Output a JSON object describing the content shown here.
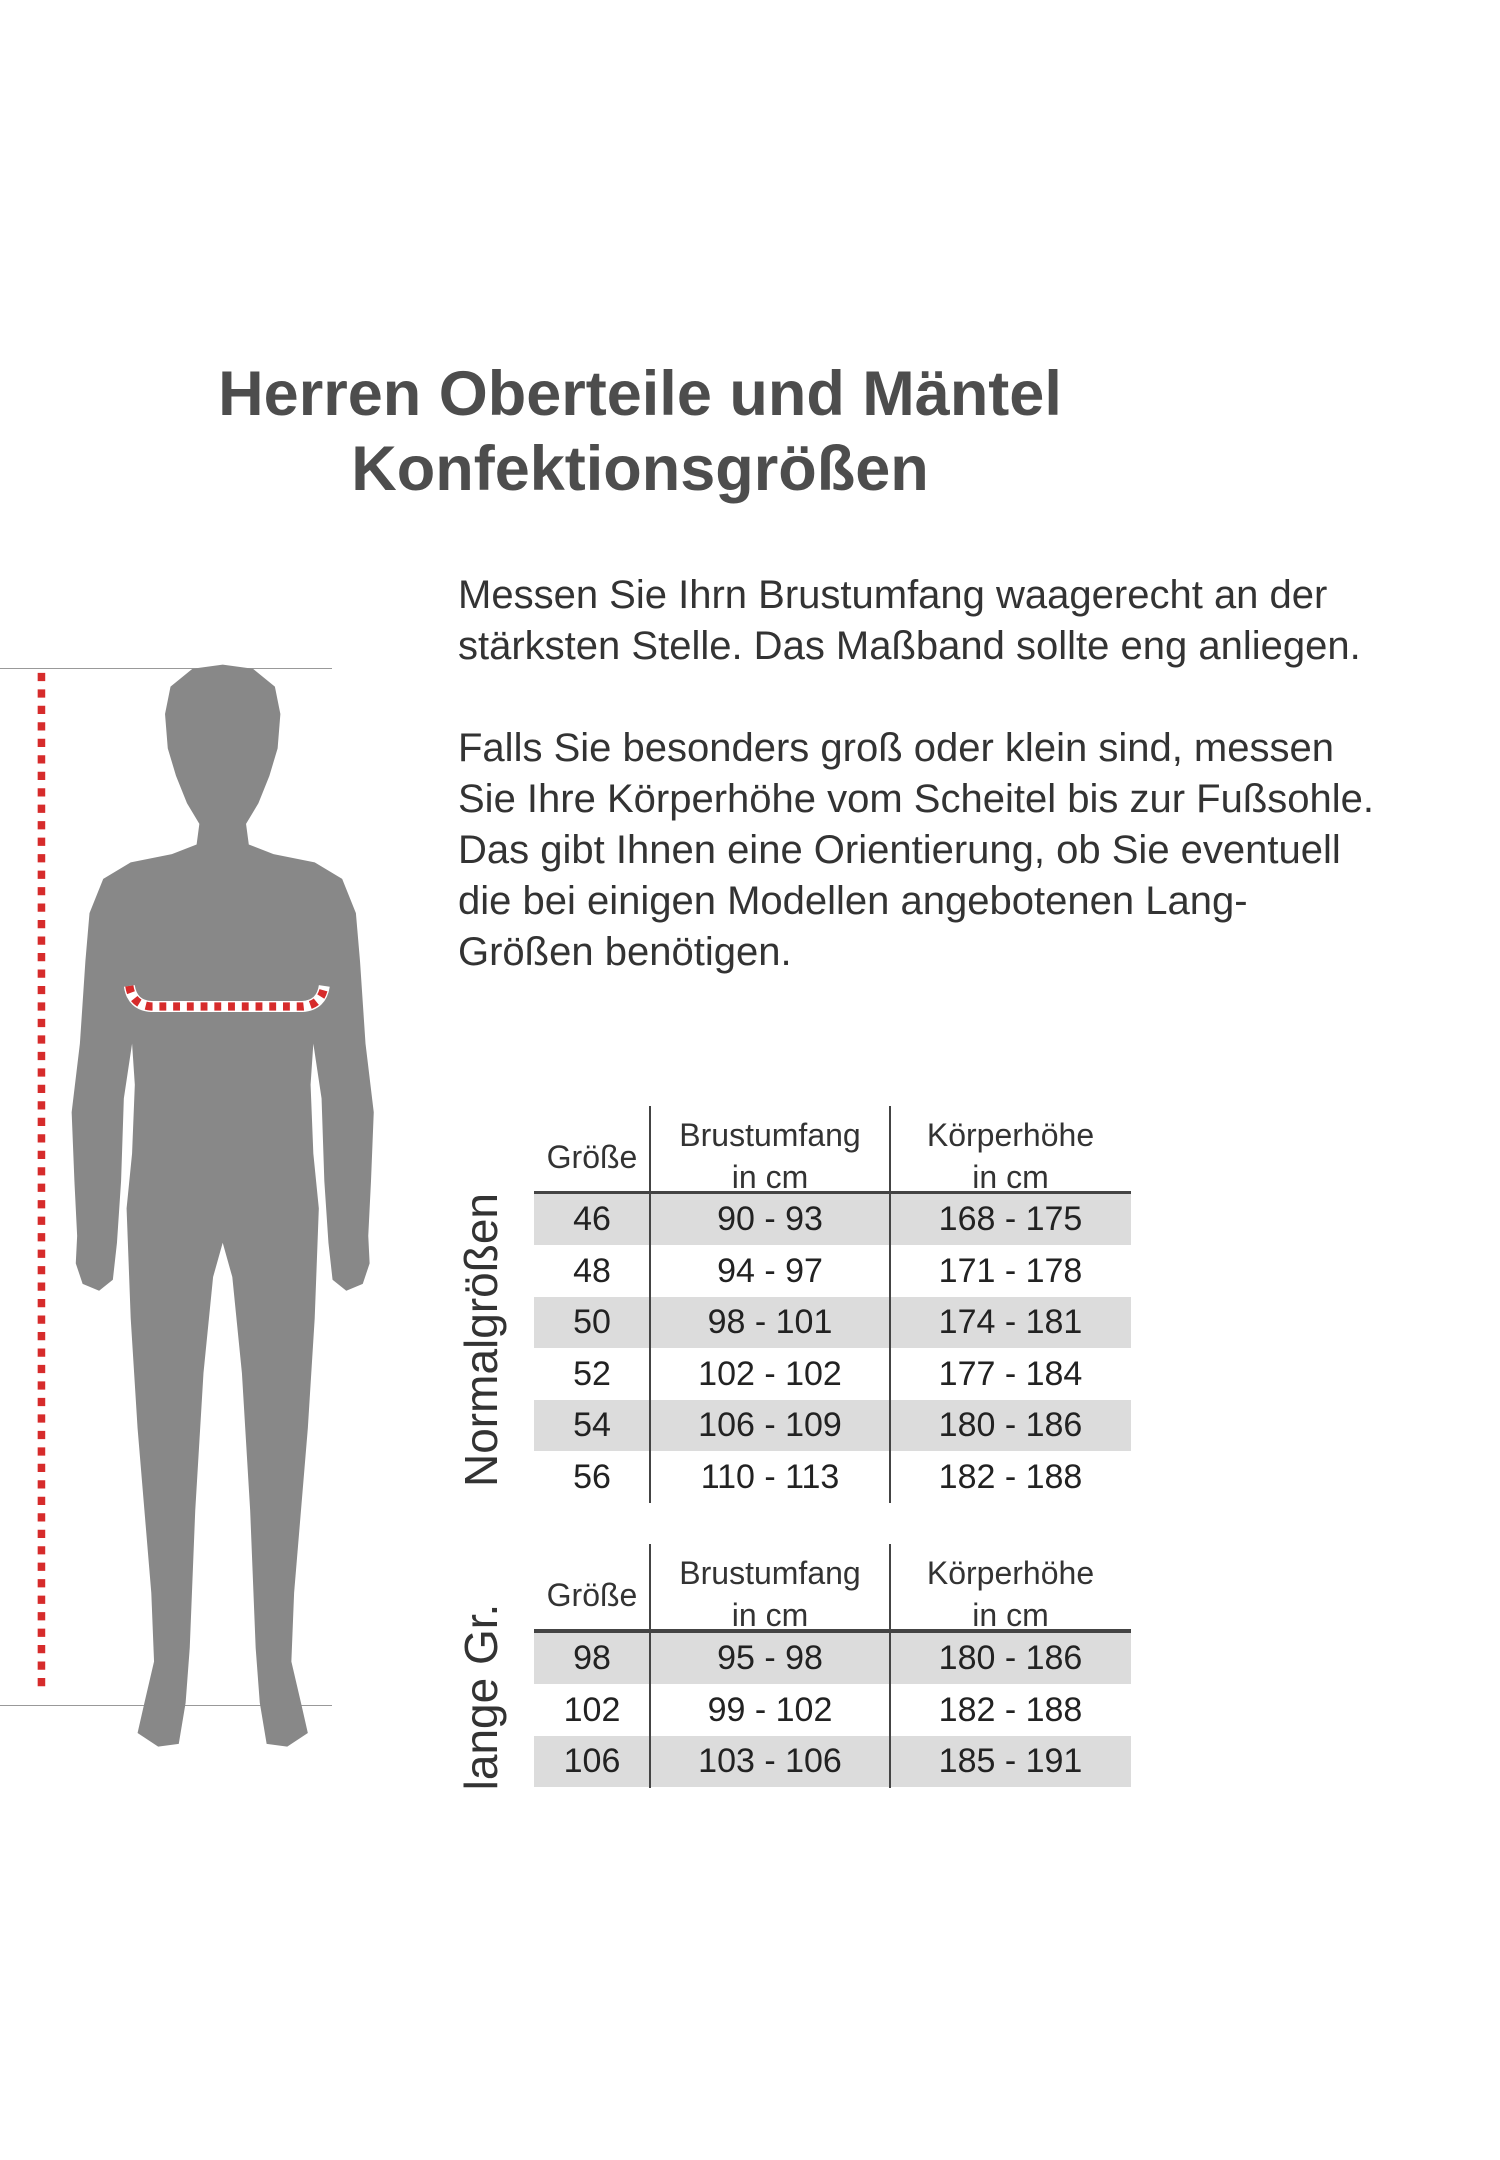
{
  "title": {
    "line1": "Herren Oberteile und Mäntel",
    "line2": "Konfektionsgrößen"
  },
  "instructions": {
    "p1_lines": [
      "Messen Sie Ihrn Brustumfang waagerecht an der",
      "stärksten Stelle. Das Maßband sollte eng anliegen."
    ],
    "p2_lines": [
      "Falls Sie besonders groß oder klein sind, messen",
      "Sie Ihre Körperhöhe vom Scheitel bis zur Fußsohle.",
      "Das gibt Ihnen eine Orientierung, ob Sie eventuell",
      "die bei einigen Modellen angebotenen Lang-",
      "Größen benötigen."
    ]
  },
  "colors": {
    "silhouette": "#888888",
    "measure_red": "#d62b2b",
    "row_shade": "#dcdcdc"
  },
  "tables": [
    {
      "label": "Normalgrößen",
      "headers": [
        {
          "line1": "Größe",
          "line2": ""
        },
        {
          "line1": "Brustumfang",
          "line2": "in cm"
        },
        {
          "line1": "Körperhöhe",
          "line2": "in cm"
        }
      ],
      "rows": [
        [
          "46",
          "90 - 93",
          "168 - 175"
        ],
        [
          "48",
          "94 - 97",
          "171 - 178"
        ],
        [
          "50",
          "98 - 101",
          "174 - 181"
        ],
        [
          "52",
          "102 - 102",
          "177 - 184"
        ],
        [
          "54",
          "106 - 109",
          "180 - 186"
        ],
        [
          "56",
          "110 - 113",
          "182 - 188"
        ]
      ]
    },
    {
      "label": "lange Gr.",
      "headers": [
        {
          "line1": "Größe",
          "line2": ""
        },
        {
          "line1": "Brustumfang",
          "line2": "in cm"
        },
        {
          "line1": "Körperhöhe",
          "line2": "in cm"
        }
      ],
      "rows": [
        [
          "98",
          "95 - 98",
          "180 - 186"
        ],
        [
          "102",
          "99 - 102",
          "182 - 188"
        ],
        [
          "106",
          "103 - 106",
          "185 - 191"
        ]
      ]
    }
  ]
}
